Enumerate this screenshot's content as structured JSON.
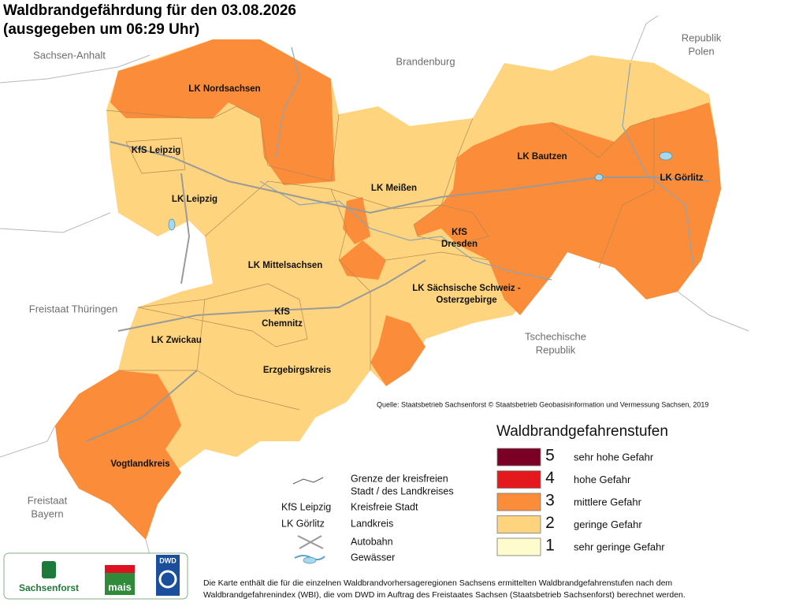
{
  "title": "Waldbrandgefährdung  für den  03.08.2026",
  "subtitle": "(ausgegeben um 06:29 Uhr)",
  "neighbors": [
    {
      "lines": [
        "Sachsen-Anhalt"
      ]
    },
    {
      "lines": [
        "Brandenburg"
      ]
    },
    {
      "lines": [
        "Republik",
        "Polen"
      ]
    },
    {
      "lines": [
        "Freistaat Thüringen"
      ]
    },
    {
      "lines": [
        "Tschechische",
        "Republik"
      ]
    },
    {
      "lines": [
        "Freistaat",
        "Bayern"
      ]
    }
  ],
  "districts": [
    {
      "lines": [
        "LK Nordsachsen"
      ]
    },
    {
      "lines": [
        "KfS Leipzig"
      ]
    },
    {
      "lines": [
        "LK Leipzig"
      ]
    },
    {
      "lines": [
        "LK Meißen"
      ]
    },
    {
      "lines": [
        "LK Bautzen"
      ]
    },
    {
      "lines": [
        "LK Görlitz"
      ]
    },
    {
      "lines": [
        "KfS",
        "Dresden"
      ]
    },
    {
      "lines": [
        "LK Mittelsachsen"
      ]
    },
    {
      "lines": [
        "LK Sächsische Schweiz -",
        "Osterzgebirge"
      ]
    },
    {
      "lines": [
        "KfS",
        "Chemnitz"
      ]
    },
    {
      "lines": [
        "LK Zwickau"
      ]
    },
    {
      "lines": [
        "Erzgebirgskreis"
      ]
    },
    {
      "lines": [
        "Vogtlandkreis"
      ]
    }
  ],
  "source": "Quelle: Staatsbetrieb Sachsenforst  © Staatsbetrieb Geobasisinformation und Vermessung Sachsen, 2019",
  "legend": {
    "title": "Waldbrandgefahrenstufen",
    "levels": [
      {
        "level": 5,
        "label": "sehr hohe Gefahr",
        "color": "#7b0025"
      },
      {
        "level": 4,
        "label": "hohe Gefahr",
        "color": "#e4191e"
      },
      {
        "level": 3,
        "label": "mittlere Gefahr",
        "color": "#fa8c3a"
      },
      {
        "level": 2,
        "label": "geringe Gefahr",
        "color": "#fed47f"
      },
      {
        "level": 1,
        "label": "sehr geringe Gefahr",
        "color": "#fefbcc"
      }
    ]
  },
  "key": {
    "border": [
      "Grenze der kreisfreien",
      "Stadt / des Landkreises"
    ],
    "city_example": "KfS Leipzig",
    "city": "Kreisfreie Stadt",
    "district_example": "LK Görlitz",
    "district": "Landkreis",
    "motorway": "Autobahn",
    "water": "Gewässer"
  },
  "logos": [
    "Sachsenforst",
    "mais",
    "DWD"
  ],
  "footnote": [
    "Die Karte enthält die für die einzelnen Waldbrandvorhersageregionen Sachsens ermittelten Waldbrandgefahrenstufen nach dem",
    "Waldbrandgefahrenindex (WBI), die vom DWD im Auftrag des Freistaates Sachsen (Staatsbetrieb Sachsenforst) berechnet werden."
  ]
}
